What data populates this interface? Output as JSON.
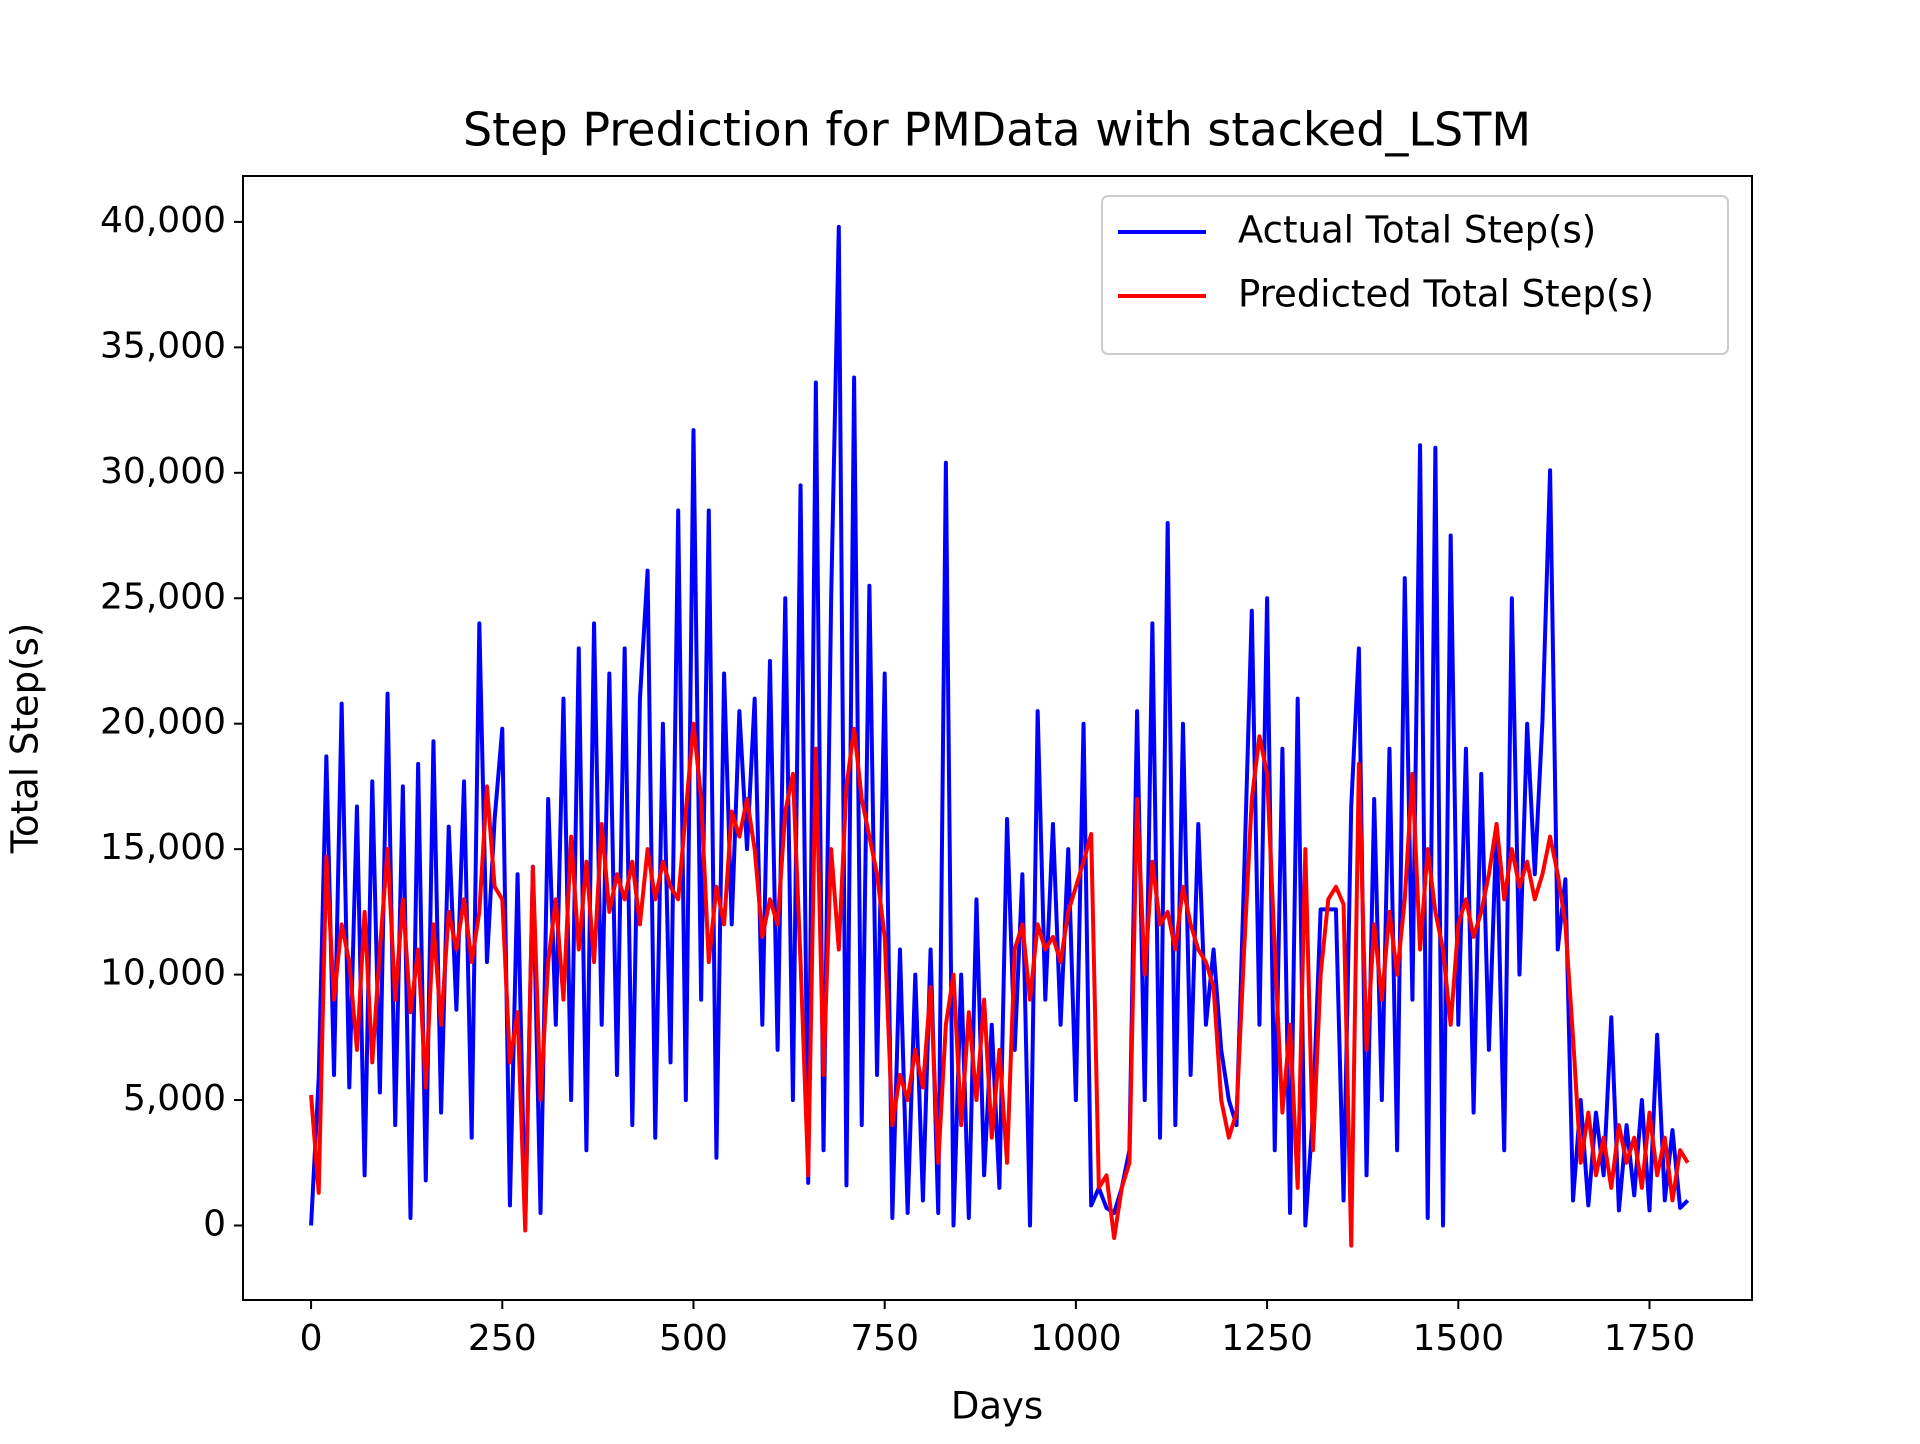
{
  "chart_data": {
    "type": "line",
    "title": "Step Prediction for PMData with stacked_LSTM",
    "x_label": "Days",
    "y_label": "Total Step(s)",
    "legend": "upper right",
    "xlim": [
      -89,
      1884
    ],
    "ylim": [
      -2970,
      41830
    ],
    "xticks": [
      0,
      250,
      500,
      750,
      1000,
      1250,
      1500,
      1750
    ],
    "yticks": [
      0,
      {
        "value": 5000,
        "label": "5,000"
      },
      {
        "value": 10000,
        "label": "10,000"
      },
      {
        "value": 15000,
        "label": "15,000"
      },
      {
        "value": 20000,
        "label": "20,000"
      },
      {
        "value": 25000,
        "label": "25,000"
      },
      {
        "value": 30000,
        "label": "30,000"
      },
      {
        "value": 35000,
        "label": "35,000"
      },
      {
        "value": 40000,
        "label": "40,000"
      }
    ],
    "x": [
      0,
      10,
      20,
      30,
      40,
      50,
      60,
      70,
      80,
      90,
      100,
      110,
      120,
      130,
      140,
      150,
      160,
      170,
      180,
      190,
      200,
      210,
      220,
      230,
      240,
      250,
      260,
      270,
      280,
      290,
      300,
      310,
      320,
      330,
      340,
      350,
      360,
      370,
      380,
      390,
      400,
      410,
      420,
      430,
      440,
      450,
      460,
      470,
      480,
      490,
      500,
      510,
      520,
      530,
      540,
      550,
      560,
      570,
      580,
      590,
      600,
      610,
      620,
      630,
      640,
      650,
      660,
      670,
      680,
      690,
      700,
      710,
      720,
      730,
      740,
      750,
      760,
      770,
      780,
      790,
      800,
      810,
      820,
      830,
      840,
      850,
      860,
      870,
      880,
      890,
      900,
      910,
      920,
      930,
      940,
      950,
      960,
      970,
      980,
      990,
      1000,
      1010,
      1020,
      1030,
      1040,
      1050,
      1060,
      1070,
      1080,
      1090,
      1100,
      1110,
      1120,
      1130,
      1140,
      1150,
      1160,
      1170,
      1180,
      1190,
      1200,
      1210,
      1220,
      1230,
      1240,
      1250,
      1260,
      1270,
      1280,
      1290,
      1300,
      1310,
      1320,
      1330,
      1340,
      1350,
      1360,
      1370,
      1380,
      1390,
      1400,
      1410,
      1420,
      1430,
      1440,
      1450,
      1460,
      1470,
      1480,
      1490,
      1500,
      1510,
      1520,
      1530,
      1540,
      1550,
      1560,
      1570,
      1580,
      1590,
      1600,
      1610,
      1620,
      1630,
      1640,
      1650,
      1660,
      1670,
      1680,
      1690,
      1700,
      1710,
      1720,
      1730,
      1740,
      1750,
      1760,
      1770,
      1780,
      1790,
      1800
    ],
    "series": [
      {
        "name": "Actual Total Step(s)",
        "color": "#0000ff",
        "values": [
          0,
          5900,
          18700,
          6000,
          20800,
          5500,
          16700,
          2000,
          17700,
          5300,
          21200,
          4000,
          17500,
          300,
          18400,
          1800,
          19300,
          4500,
          15900,
          8600,
          17700,
          3500,
          24000,
          10500,
          16200,
          19800,
          800,
          14000,
          0,
          14300,
          500,
          17000,
          8000,
          21000,
          5000,
          23000,
          3000,
          24000,
          8000,
          22000,
          6000,
          23000,
          4000,
          21000,
          26100,
          3500,
          20000,
          6500,
          28500,
          5000,
          31700,
          9000,
          28500,
          2700,
          22000,
          12000,
          20500,
          15000,
          21000,
          8000,
          22500,
          7000,
          25000,
          5000,
          29500,
          1700,
          33600,
          3000,
          25000,
          39800,
          1600,
          33800,
          4000,
          25500,
          6000,
          22000,
          300,
          11000,
          500,
          10000,
          1000,
          11000,
          500,
          30400,
          0,
          10000,
          300,
          13000,
          2000,
          8000,
          1500,
          16200,
          7000,
          14000,
          0,
          20500,
          9000,
          16000,
          8000,
          15000,
          5000,
          20000,
          800,
          1500,
          700,
          500,
          1500,
          3000,
          20500,
          5000,
          24000,
          3500,
          28000,
          4000,
          20000,
          6000,
          16000,
          8000,
          11000,
          7000,
          5000,
          4000,
          14000,
          24500,
          8000,
          25000,
          3000,
          19000,
          500,
          21000,
          0,
          4500,
          12600,
          12600,
          12600,
          1000,
          16700,
          23000,
          2000,
          17000,
          5000,
          19000,
          3000,
          25800,
          9000,
          31100,
          300,
          31000,
          0,
          27500,
          8000,
          19000,
          4500,
          18000,
          7000,
          16000,
          3000,
          25000,
          10000,
          20000,
          14000,
          20100,
          30100,
          11000,
          13800,
          1000,
          5000,
          800,
          4500,
          2000,
          8300,
          600,
          4000,
          1200,
          5000,
          600,
          7600,
          1000,
          3800,
          700,
          1000
        ]
      },
      {
        "name": "Predicted Total Step(s)",
        "color": "#ff0000",
        "values": [
          5200,
          1300,
          14700,
          9000,
          12000,
          10500,
          7000,
          12500,
          6500,
          11000,
          15000,
          9000,
          13000,
          8500,
          11000,
          5500,
          12000,
          8000,
          12500,
          11000,
          13000,
          10500,
          12500,
          17500,
          13500,
          13000,
          6500,
          8500,
          -200,
          14300,
          5000,
          10500,
          13000,
          9000,
          15500,
          11000,
          14500,
          10500,
          16000,
          12500,
          14000,
          13000,
          14500,
          12000,
          15000,
          13000,
          14500,
          13500,
          13000,
          16500,
          20000,
          17000,
          10500,
          13500,
          12000,
          16500,
          15500,
          17000,
          15000,
          11500,
          13000,
          12000,
          16500,
          18000,
          10500,
          2000,
          19000,
          6000,
          15000,
          11000,
          17500,
          19800,
          17000,
          15500,
          14000,
          11500,
          4000,
          6000,
          5000,
          7000,
          5500,
          9500,
          2500,
          8000,
          10000,
          4000,
          8500,
          5000,
          9000,
          3500,
          7000,
          2500,
          11000,
          12000,
          9000,
          12000,
          11000,
          11500,
          10500,
          12500,
          13500,
          14500,
          15600,
          1500,
          2000,
          -500,
          1500,
          2500,
          17000,
          10000,
          14500,
          12000,
          12500,
          11000,
          13500,
          12000,
          11000,
          10500,
          9500,
          5000,
          3500,
          4500,
          11000,
          17000,
          19500,
          18000,
          11000,
          4500,
          8000,
          1500,
          15000,
          3000,
          10000,
          13000,
          13500,
          12800,
          -800,
          18400,
          7000,
          12000,
          9000,
          12500,
          10000,
          13000,
          18000,
          11000,
          15000,
          12500,
          11000,
          8000,
          12000,
          13000,
          11500,
          12500,
          14000,
          16000,
          13000,
          15000,
          13500,
          14500,
          13000,
          14000,
          15500,
          14000,
          12000,
          7500,
          2500,
          4500,
          2000,
          3500,
          1500,
          4000,
          2500,
          3500,
          1500,
          4500,
          2000,
          3500,
          1000,
          3000,
          2500
        ]
      }
    ]
  }
}
